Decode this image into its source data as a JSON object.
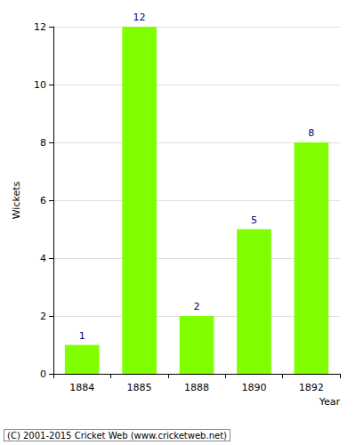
{
  "chart_data": {
    "type": "bar",
    "categories": [
      "1884",
      "1885",
      "1888",
      "1890",
      "1892"
    ],
    "values": [
      1,
      12,
      2,
      5,
      8
    ],
    "color": "#80ff00",
    "x_label": "Year",
    "y_label": "Wickets",
    "ylim": [
      0,
      12
    ],
    "yticks": [
      0,
      2,
      4,
      6,
      8,
      10,
      12
    ],
    "grid": true,
    "data_labels": true,
    "annotations": [
      "(C) 2001-2015 Cricket Web (www.cricketweb.net)"
    ]
  }
}
